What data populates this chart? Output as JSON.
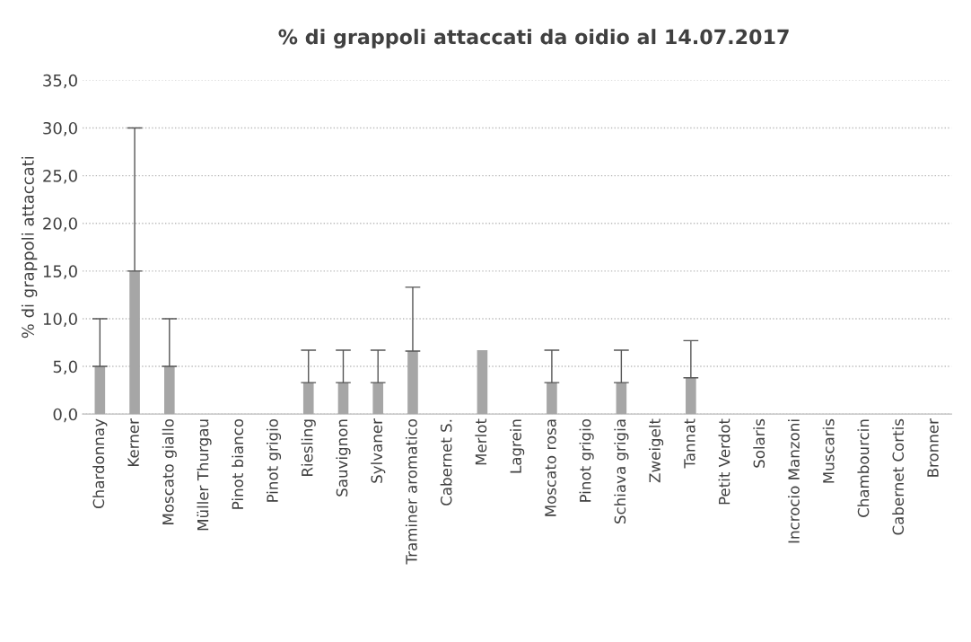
{
  "chart_data": {
    "type": "bar",
    "title": "% di grappoli attaccati da oidio al 14.07.2017",
    "ylabel": "% di grappoli attaccati",
    "categories": [
      "Chardonnay",
      "Kerner",
      "Moscato giallo",
      "Müller Thurgau",
      "Pinot bianco",
      "Pinot grigio",
      "Riesling",
      "Sauvignon",
      "Sylvaner",
      "Traminer aromatico",
      "Cabernet S.",
      "Merlot",
      "Lagrein",
      "Moscato rosa",
      "Pinot grigio",
      "Schiava grigia",
      "Zweigelt",
      "Tannat",
      "Petit Verdot",
      "Solaris",
      "Incrocio Manzoni",
      "Muscaris",
      "Chambourcin",
      "Cabernet Cortis",
      "Bronner"
    ],
    "values": [
      5.0,
      15.0,
      5.0,
      0,
      0,
      0,
      3.3,
      3.3,
      3.3,
      6.6,
      0,
      6.7,
      0,
      3.3,
      0,
      3.3,
      0,
      3.8,
      0,
      0,
      0,
      0,
      0,
      0,
      0
    ],
    "errors": [
      [
        5.0,
        10.0
      ],
      [
        15.0,
        30.0
      ],
      [
        5.0,
        10.0
      ],
      null,
      null,
      null,
      [
        3.3,
        6.7
      ],
      [
        3.3,
        6.7
      ],
      [
        3.3,
        6.7
      ],
      [
        6.6,
        13.3
      ],
      null,
      null,
      null,
      [
        3.3,
        6.7
      ],
      null,
      [
        3.3,
        6.7
      ],
      null,
      [
        3.8,
        7.7
      ],
      null,
      null,
      null,
      null,
      null,
      null,
      null
    ],
    "color": "#a6a6a6",
    "ylim": [
      0,
      35
    ],
    "yticks": [
      {
        "value": 0,
        "label": "0,0"
      },
      {
        "value": 5,
        "label": "5,0"
      },
      {
        "value": 10,
        "label": "10,0"
      },
      {
        "value": 15,
        "label": "15,0"
      },
      {
        "value": 20,
        "label": "20,0"
      },
      {
        "value": 25,
        "label": "25,0"
      },
      {
        "value": 30,
        "label": "30,0"
      },
      {
        "value": 35,
        "label": "35,0"
      }
    ],
    "grid": "y",
    "legend": false
  }
}
